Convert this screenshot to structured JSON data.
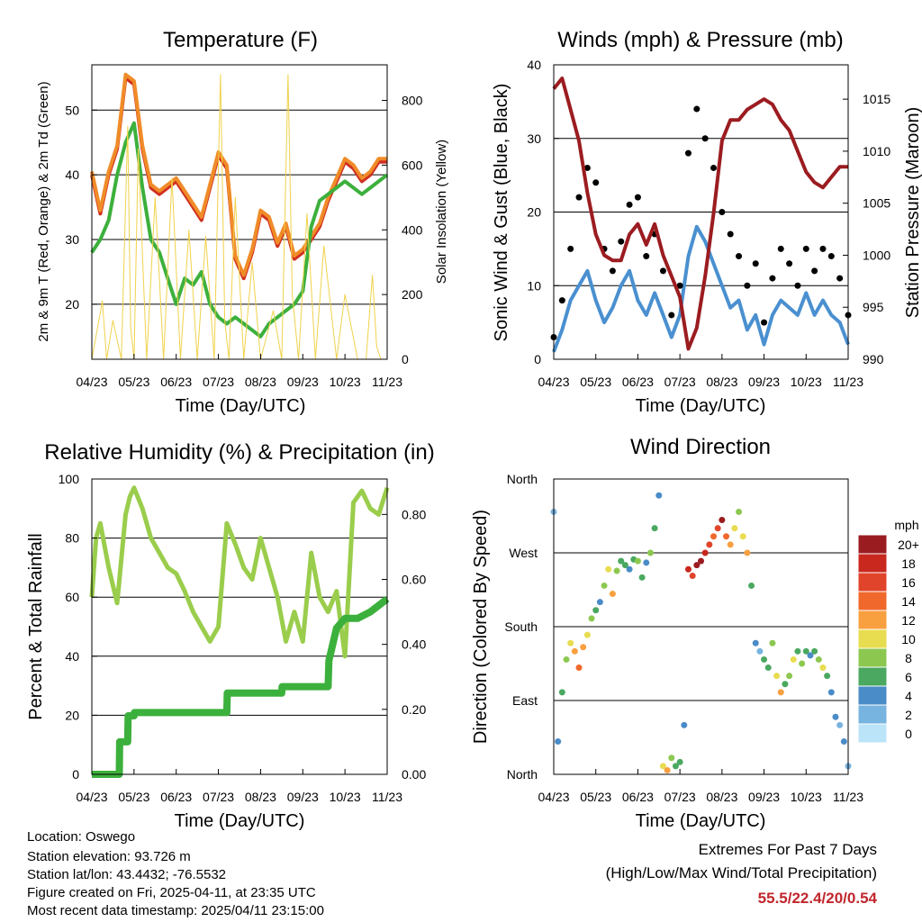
{
  "info": {
    "location": "Location: Oswego",
    "elevation": "Station elevation: 93.726 m",
    "latlon": "Station lat/lon: 43.4432; -76.5532",
    "created": "Figure created on Fri, 2025-04-11, at 23:35 UTC",
    "recent": "Most recent data timestamp: 2025/04/11 23:15:00"
  },
  "extremes": {
    "heading": "Extremes For Past 7 Days",
    "subheading": "(High/Low/Max Wind/Total Precipitation)",
    "values": "55.5/22.4/20/0.54",
    "color": "#c0272d"
  },
  "x_ticks": [
    "04/23",
    "05/23",
    "06/23",
    "07/23",
    "08/23",
    "09/23",
    "10/23",
    "11/23"
  ],
  "x_label": "Time (Day/UTC)",
  "chart_data": [
    {
      "id": "temperature",
      "type": "line",
      "title": "Temperature (F)",
      "ylabel": "2m & 9m T (Red, Orange) & 2m Td (Green)",
      "ylabel_right": "Solar Insolation (Yellow)",
      "ylim": [
        11.5,
        57
      ],
      "y_ticks": [
        20,
        30,
        40,
        50
      ],
      "ylim_right": [
        0,
        910
      ],
      "y_ticks_right": [
        0,
        200,
        400,
        600,
        800
      ],
      "x_range": [
        0,
        7
      ],
      "series": [
        {
          "name": "2m T",
          "color": "#d03020",
          "x": [
            0,
            0.2,
            0.4,
            0.6,
            0.8,
            1.0,
            1.2,
            1.4,
            1.6,
            1.8,
            2.0,
            2.2,
            2.4,
            2.6,
            2.8,
            3.0,
            3.2,
            3.4,
            3.6,
            3.8,
            4.0,
            4.2,
            4.4,
            4.6,
            4.8,
            5.0,
            5.2,
            5.4,
            5.6,
            5.8,
            6.0,
            6.2,
            6.4,
            6.6,
            6.8,
            7.0
          ],
          "y": [
            40,
            34,
            40,
            44,
            55,
            54,
            44,
            38,
            37,
            38,
            39,
            37,
            35,
            33,
            38,
            43,
            41,
            27,
            24,
            28,
            34,
            33,
            29,
            32,
            27,
            28,
            30,
            32,
            36,
            39,
            42,
            41,
            39,
            40,
            42,
            42
          ]
        },
        {
          "name": "9m T",
          "color": "#f08c28",
          "x": [
            0,
            0.2,
            0.4,
            0.6,
            0.8,
            1.0,
            1.2,
            1.4,
            1.6,
            1.8,
            2.0,
            2.2,
            2.4,
            2.6,
            2.8,
            3.0,
            3.2,
            3.4,
            3.6,
            3.8,
            4.0,
            4.2,
            4.4,
            4.6,
            4.8,
            5.0,
            5.2,
            5.4,
            5.6,
            5.8,
            6.0,
            6.2,
            6.4,
            6.6,
            6.8,
            7.0
          ],
          "y": [
            40.5,
            34.5,
            40.5,
            44.5,
            55.5,
            54.5,
            44.5,
            38.5,
            37.5,
            38.5,
            39.5,
            37.5,
            35.5,
            33.5,
            38.5,
            43.5,
            41.5,
            27.5,
            24.5,
            28.5,
            34.5,
            33.5,
            29.5,
            32.5,
            27.5,
            28.5,
            30.5,
            32.5,
            36.5,
            39.5,
            42.5,
            41.5,
            39.5,
            40.5,
            42.5,
            42.5
          ]
        },
        {
          "name": "2m Td",
          "color": "#3cb03c",
          "x": [
            0,
            0.2,
            0.4,
            0.6,
            0.8,
            1.0,
            1.2,
            1.4,
            1.6,
            1.8,
            2.0,
            2.2,
            2.4,
            2.6,
            2.8,
            3.0,
            3.2,
            3.4,
            3.6,
            3.8,
            4.0,
            4.2,
            4.4,
            4.6,
            4.8,
            5.0,
            5.2,
            5.4,
            5.6,
            5.8,
            6.0,
            6.2,
            6.4,
            6.6,
            6.8,
            7.0
          ],
          "y": [
            28,
            30,
            33,
            40,
            45,
            48,
            38,
            30,
            28,
            24,
            20,
            24,
            23,
            25,
            20,
            18,
            17,
            18,
            17,
            16,
            15,
            17,
            18,
            19,
            20,
            22,
            32,
            36,
            37,
            38,
            39,
            38,
            37,
            38,
            39,
            40
          ]
        },
        {
          "name": "Solar Insolation",
          "color": "#f0d24c",
          "axis": "right",
          "x": [
            0,
            0.25,
            0.35,
            0.5,
            0.7,
            0.85,
            0.92,
            1.0,
            1.1,
            1.3,
            1.5,
            1.7,
            1.9,
            2.1,
            2.3,
            2.5,
            2.7,
            2.9,
            3.05,
            3.15,
            3.25,
            3.4,
            3.6,
            3.8,
            4.0,
            4.3,
            4.5,
            4.65,
            4.75,
            4.9,
            5.1,
            5.3,
            5.5,
            5.8,
            6.0,
            6.3,
            6.5,
            6.65,
            6.75,
            6.85,
            7.0
          ],
          "y": [
            0,
            180,
            0,
            120,
            0,
            720,
            100,
            0,
            650,
            0,
            500,
            0,
            560,
            0,
            400,
            0,
            380,
            0,
            880,
            120,
            0,
            500,
            0,
            300,
            0,
            150,
            0,
            880,
            200,
            0,
            450,
            0,
            350,
            0,
            200,
            0,
            0,
            260,
            40,
            0,
            0
          ]
        }
      ]
    },
    {
      "id": "winds",
      "type": "scatter",
      "title": "Winds (mph) & Pressure (mb)",
      "ylabel": "Sonic Wind & Gust (Blue, Black)",
      "ylabel_right": "Station Pressure (Maroon)",
      "ylim": [
        0,
        40
      ],
      "y_ticks": [
        0,
        10,
        20,
        30,
        40
      ],
      "ylim_right": [
        990,
        1018.3
      ],
      "y_ticks_right": [
        990,
        995,
        1000,
        1005,
        1010,
        1015
      ],
      "x_range": [
        0,
        7
      ],
      "series": [
        {
          "name": "Sonic Wind",
          "color": "#4a90d0",
          "style": "line",
          "x": [
            0,
            0.2,
            0.4,
            0.6,
            0.8,
            1.0,
            1.2,
            1.4,
            1.6,
            1.8,
            2.0,
            2.2,
            2.4,
            2.6,
            2.8,
            3.0,
            3.2,
            3.4,
            3.6,
            3.8,
            4.0,
            4.2,
            4.4,
            4.6,
            4.8,
            5.0,
            5.2,
            5.4,
            5.6,
            5.8,
            6.0,
            6.2,
            6.4,
            6.6,
            6.8,
            7.0
          ],
          "y": [
            1,
            4,
            8,
            10,
            12,
            8,
            5,
            7,
            10,
            12,
            8,
            6,
            9,
            6,
            3,
            6,
            14,
            18,
            16,
            13,
            10,
            7,
            8,
            4,
            6,
            2,
            6,
            8,
            7,
            6,
            9,
            6,
            8,
            6,
            5,
            2
          ]
        },
        {
          "name": "Gust",
          "color": "#000000",
          "style": "points",
          "x": [
            0,
            0.2,
            0.4,
            0.6,
            0.8,
            1.0,
            1.2,
            1.4,
            1.6,
            1.8,
            2.0,
            2.2,
            2.4,
            2.6,
            2.8,
            3.0,
            3.2,
            3.4,
            3.6,
            3.8,
            4.0,
            4.2,
            4.4,
            4.6,
            4.8,
            5.0,
            5.2,
            5.4,
            5.6,
            5.8,
            6.0,
            6.2,
            6.4,
            6.6,
            6.8,
            7.0
          ],
          "y": [
            3,
            8,
            15,
            22,
            26,
            24,
            15,
            12,
            16,
            21,
            22,
            14,
            17,
            12,
            6,
            10,
            28,
            34,
            30,
            26,
            20,
            17,
            14,
            10,
            13,
            5,
            11,
            15,
            13,
            10,
            15,
            12,
            15,
            14,
            11,
            6
          ]
        },
        {
          "name": "Station Pressure",
          "color": "#9b1c20",
          "style": "line",
          "axis": "right",
          "x": [
            0,
            0.2,
            0.4,
            0.6,
            0.8,
            1.0,
            1.2,
            1.4,
            1.6,
            1.8,
            2.0,
            2.2,
            2.4,
            2.6,
            2.8,
            3.0,
            3.2,
            3.4,
            3.6,
            3.8,
            4.0,
            4.2,
            4.4,
            4.6,
            4.8,
            5.0,
            5.2,
            5.4,
            5.6,
            5.8,
            6.0,
            6.2,
            6.4,
            6.6,
            6.8,
            7.0
          ],
          "y": [
            1016,
            1017,
            1014,
            1011,
            1006,
            1002,
            1000,
            999.5,
            999.5,
            1002,
            1003,
            1001,
            1003,
            1000,
            998,
            996,
            991,
            993,
            998,
            1004,
            1011,
            1013,
            1013,
            1014,
            1014.5,
            1015,
            1014.5,
            1013,
            1012,
            1010,
            1008,
            1007,
            1006.5,
            1007.5,
            1008.5,
            1008.5
          ]
        }
      ]
    },
    {
      "id": "humidity",
      "type": "line",
      "title": "Relative Humidity (%) & Precipitation (in)",
      "ylabel": "Percent & Total Rainfall",
      "ylim": [
        0,
        100
      ],
      "y_ticks": [
        0,
        20,
        40,
        60,
        80,
        100
      ],
      "ylim_right": [
        0,
        0.909
      ],
      "y_ticks_right": [
        "0.00",
        "0.20",
        "0.40",
        "0.60",
        "0.80"
      ],
      "x_range": [
        0,
        7
      ],
      "series": [
        {
          "name": "Relative Humidity",
          "color": "#9acd4c",
          "x": [
            0,
            0.1,
            0.2,
            0.4,
            0.6,
            0.8,
            0.9,
            1.0,
            1.2,
            1.4,
            1.6,
            1.8,
            2.0,
            2.2,
            2.4,
            2.6,
            2.8,
            3.0,
            3.2,
            3.4,
            3.6,
            3.8,
            4.0,
            4.2,
            4.4,
            4.6,
            4.8,
            5.0,
            5.2,
            5.4,
            5.6,
            5.8,
            6.0,
            6.2,
            6.4,
            6.6,
            6.8,
            7.0
          ],
          "y": [
            60,
            80,
            85,
            70,
            58,
            88,
            94,
            97,
            90,
            80,
            75,
            70,
            68,
            62,
            55,
            50,
            45,
            50,
            85,
            78,
            70,
            66,
            80,
            70,
            60,
            45,
            55,
            45,
            75,
            60,
            55,
            62,
            40,
            92,
            96,
            90,
            88,
            97
          ]
        },
        {
          "name": "Total Precipitation",
          "color": "#3cb03c",
          "axis": "right",
          "x": [
            0,
            0.65,
            0.66,
            0.85,
            0.86,
            1.0,
            1.01,
            3.2,
            3.21,
            4.5,
            4.51,
            5.6,
            5.62,
            5.8,
            6.0,
            6.3,
            6.6,
            6.8,
            7.0
          ],
          "y": [
            0,
            0,
            0.1,
            0.1,
            0.18,
            0.18,
            0.19,
            0.19,
            0.25,
            0.25,
            0.27,
            0.27,
            0.35,
            0.45,
            0.48,
            0.48,
            0.5,
            0.52,
            0.54
          ]
        }
      ]
    },
    {
      "id": "wind_direction",
      "type": "scatter",
      "title": "Wind Direction",
      "ylabel": "Direction (Colored By Speed)",
      "y_ticks": [
        "North",
        "East",
        "South",
        "West",
        "North"
      ],
      "ylim": [
        0,
        360
      ],
      "x_range": [
        0,
        7
      ],
      "colorbar": {
        "title": "mph",
        "labels": [
          "20+",
          "18",
          "16",
          "14",
          "12",
          "10",
          "8",
          "6",
          "4",
          "2",
          "0"
        ],
        "colors": [
          "#9b1c20",
          "#c8281e",
          "#e0442a",
          "#f0682c",
          "#f8a040",
          "#e8dc50",
          "#8cc850",
          "#4aa860",
          "#4a8cc8",
          "#78b4e0",
          "#bce4f8"
        ]
      },
      "series": [
        {
          "name": "Direction",
          "style": "points",
          "x": [
            0,
            0.1,
            0.2,
            0.3,
            0.4,
            0.5,
            0.6,
            0.7,
            0.8,
            0.9,
            1.0,
            1.1,
            1.2,
            1.3,
            1.4,
            1.5,
            1.6,
            1.7,
            1.8,
            1.9,
            2.0,
            2.1,
            2.2,
            2.3,
            2.4,
            2.5,
            2.6,
            2.7,
            2.8,
            2.9,
            3.0,
            3.1,
            3.2,
            3.3,
            3.4,
            3.5,
            3.6,
            3.7,
            3.8,
            3.9,
            4.0,
            4.1,
            4.2,
            4.3,
            4.4,
            4.5,
            4.6,
            4.7,
            4.8,
            4.9,
            5.0,
            5.1,
            5.2,
            5.3,
            5.4,
            5.5,
            5.6,
            5.7,
            5.8,
            5.9,
            6.0,
            6.1,
            6.2,
            6.3,
            6.4,
            6.5,
            6.6,
            6.7,
            6.8,
            6.9,
            7.0
          ],
          "y": [
            320,
            40,
            100,
            140,
            160,
            150,
            130,
            155,
            170,
            190,
            200,
            210,
            230,
            250,
            220,
            248,
            260,
            255,
            250,
            262,
            260,
            240,
            258,
            270,
            300,
            340,
            10,
            5,
            20,
            10,
            15,
            60,
            250,
            242,
            255,
            260,
            270,
            280,
            290,
            300,
            310,
            290,
            280,
            300,
            320,
            290,
            270,
            230,
            160,
            150,
            140,
            130,
            160,
            120,
            100,
            110,
            120,
            140,
            150,
            135,
            150,
            145,
            150,
            140,
            130,
            120,
            100,
            70,
            60,
            40,
            10
          ],
          "speed": [
            2,
            4,
            6,
            8,
            10,
            12,
            14,
            12,
            10,
            8,
            6,
            4,
            8,
            10,
            12,
            8,
            6,
            6,
            4,
            6,
            8,
            6,
            4,
            8,
            6,
            4,
            10,
            12,
            8,
            6,
            6,
            4,
            18,
            16,
            20,
            20,
            18,
            16,
            14,
            16,
            20,
            14,
            12,
            10,
            8,
            10,
            12,
            6,
            4,
            2,
            6,
            6,
            8,
            10,
            12,
            6,
            8,
            10,
            6,
            8,
            6,
            4,
            6,
            8,
            10,
            6,
            4,
            4,
            2,
            4,
            2
          ]
        }
      ]
    }
  ]
}
